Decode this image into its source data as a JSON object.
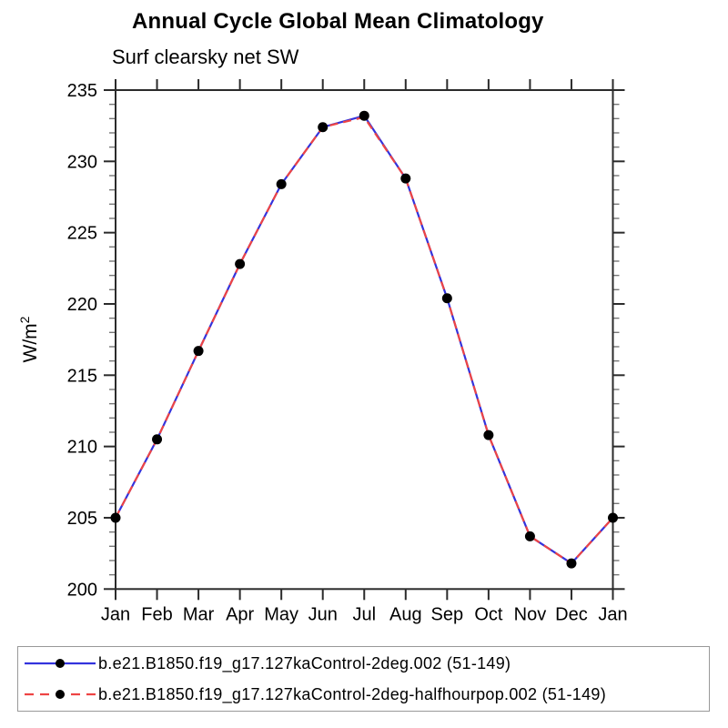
{
  "title": "Annual Cycle Global Mean Climatology",
  "subtitle": "Surf clearsky net SW",
  "ylabel": {
    "base": "W/m",
    "sup": "2"
  },
  "chart_data": {
    "type": "line",
    "title": "Annual Cycle Global Mean Climatology",
    "subtitle": "Surf clearsky net SW",
    "ylabel": "W/m²",
    "xlabel": "",
    "categories": [
      "Jan",
      "Feb",
      "Mar",
      "Apr",
      "May",
      "Jun",
      "Jul",
      "Aug",
      "Sep",
      "Oct",
      "Nov",
      "Dec",
      "Jan"
    ],
    "series": [
      {
        "name": "b.e21.B1850.f19_g17.127kaControl-2deg.002 (51-149)",
        "style": "solid",
        "color": "#3333dd",
        "marker": "filled-circle",
        "marker_color": "#000000",
        "values": [
          205.0,
          210.5,
          216.7,
          222.8,
          228.4,
          232.4,
          233.2,
          228.8,
          220.4,
          210.8,
          203.7,
          201.8,
          205.0
        ]
      },
      {
        "name": "b.e21.B1850.f19_g17.127kaControl-2deg-halfhourpop.002 (51-149)",
        "style": "dashed",
        "color": "#ee4444",
        "marker": "filled-circle",
        "marker_color": "#000000",
        "values": [
          205.0,
          210.5,
          216.7,
          222.8,
          228.4,
          232.4,
          233.1,
          228.8,
          220.4,
          210.8,
          203.7,
          201.8,
          205.0
        ]
      }
    ],
    "ylim": [
      200,
      235
    ],
    "ytick_major": 5,
    "ytick_minor": 1,
    "grid": false,
    "legend_position": "bottom"
  },
  "axis_style": {
    "frame_color": "#2b2b2b",
    "major_tick_color": "#2b2b2b",
    "minor_tick_color": "#777777"
  }
}
